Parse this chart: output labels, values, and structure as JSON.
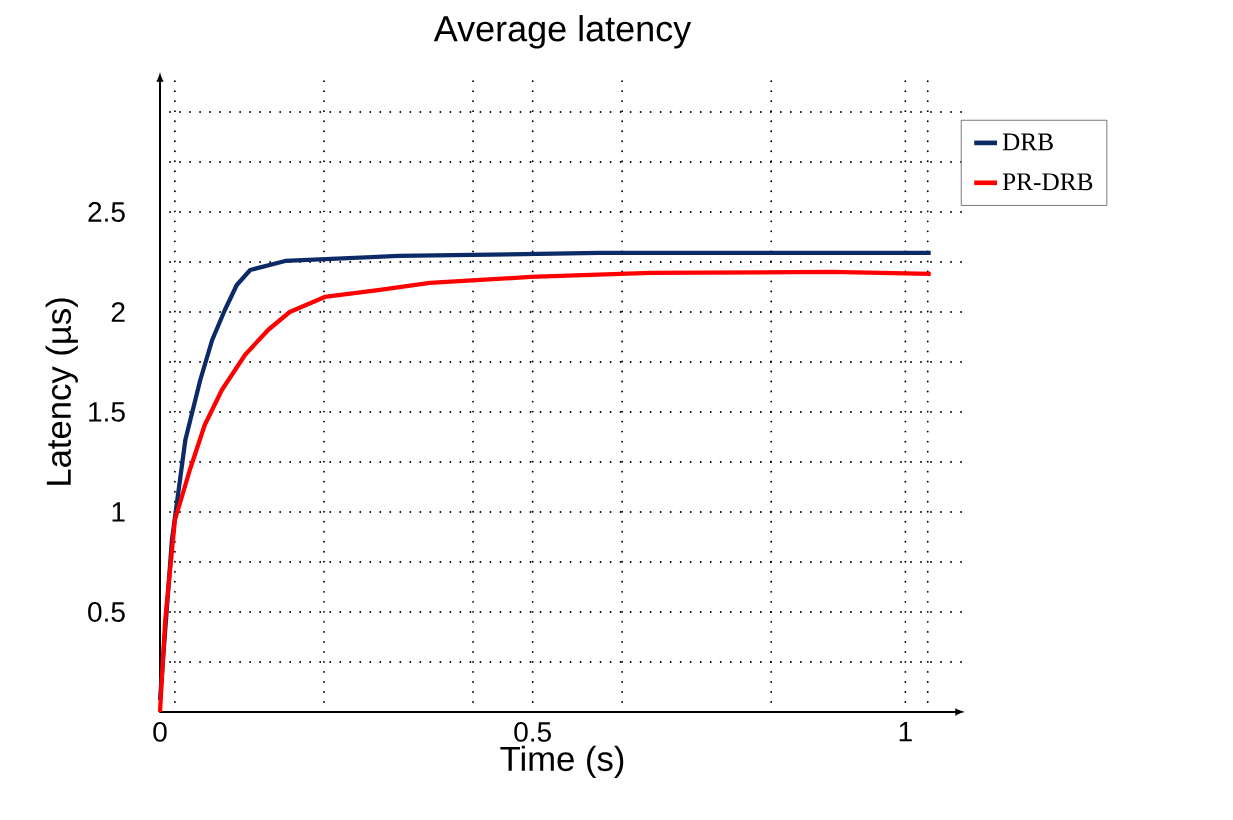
{
  "chart_data": {
    "type": "line",
    "title": "Average latency",
    "xlabel": "Time (s)",
    "ylabel": "Latency (µs)",
    "xlim": [
      0,
      1.08
    ],
    "ylim": [
      0,
      3.2
    ],
    "xticks": [
      0,
      0.5,
      1,
      {
        "value": 0.02,
        "label": null
      },
      {
        "value": 0.22,
        "label": null
      },
      {
        "value": 0.42,
        "label": null
      },
      {
        "value": 0.62,
        "label": null
      },
      {
        "value": 0.82,
        "label": null
      },
      {
        "value": 1.03,
        "label": null
      }
    ],
    "yticks": [
      0.5,
      1,
      1.5,
      2,
      2.5,
      {
        "value": 0.25,
        "label": null
      },
      {
        "value": 0.75,
        "label": null
      },
      {
        "value": 1.25,
        "label": null
      },
      {
        "value": 1.75,
        "label": null
      },
      {
        "value": 2.25,
        "label": null
      },
      {
        "value": 2.75,
        "label": null
      },
      {
        "value": 3.0,
        "label": null
      }
    ],
    "grid": true,
    "legend": "top right",
    "marker": "none",
    "line_style": "solid",
    "series": [
      {
        "name": "DRB",
        "color": "#0c2a66",
        "x": [
          0,
          0.016,
          0.034,
          0.054,
          0.07,
          0.087,
          0.103,
          0.121,
          0.168,
          0.32,
          0.59,
          1.034
        ],
        "values": [
          0.06,
          0.86,
          1.36,
          1.66,
          1.86,
          2.01,
          2.135,
          2.21,
          2.255,
          2.28,
          2.295,
          2.295
        ]
      },
      {
        "name": "PR-DRB",
        "color": "#ff0000",
        "x": [
          0,
          0.007,
          0.02,
          0.04,
          0.06,
          0.083,
          0.114,
          0.145,
          0.174,
          0.221,
          0.295,
          0.362,
          0.497,
          0.658,
          0.9,
          1.034
        ],
        "values": [
          0,
          0.46,
          0.96,
          1.21,
          1.435,
          1.61,
          1.785,
          1.91,
          2.0,
          2.075,
          2.11,
          2.145,
          2.175,
          2.195,
          2.2,
          2.19
        ]
      }
    ]
  }
}
